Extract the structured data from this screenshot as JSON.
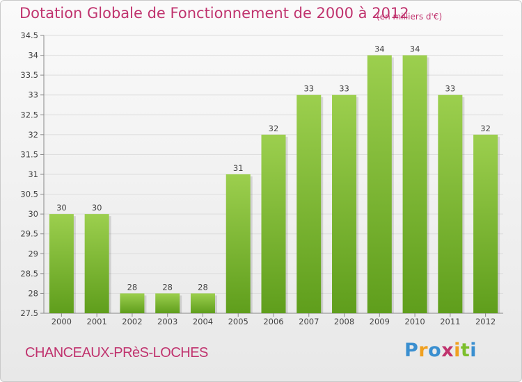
{
  "title": "Dotation Globale de Fonctionnement de 2000 à 2012",
  "unit_note": "(en milliers d'€)",
  "commune": "CHANCEAUX-PRèS-LOCHES",
  "logo_text": "Proxiti",
  "chart_data": {
    "type": "bar",
    "categories": [
      "2000",
      "2001",
      "2002",
      "2003",
      "2004",
      "2005",
      "2006",
      "2007",
      "2008",
      "2009",
      "2010",
      "2011",
      "2012"
    ],
    "values": [
      30,
      30,
      28,
      28,
      28,
      31,
      32,
      33,
      33,
      34,
      34,
      33,
      32
    ],
    "data_labels": [
      "30",
      "30",
      "28",
      "28",
      "28",
      "31",
      "32",
      "33",
      "33",
      "34",
      "34",
      "33",
      "32"
    ],
    "ylim": [
      27.5,
      34.5
    ],
    "yticks": [
      "27.5",
      "28",
      "28.5",
      "29",
      "29.5",
      "30",
      "30.5",
      "31",
      "31.5",
      "32",
      "32.5",
      "33",
      "33.5",
      "34",
      "34.5"
    ],
    "grid": true,
    "colors": {
      "bar_top": "#9ccf4e",
      "bar_bottom": "#5f9e1c",
      "grid": "#dcdcdc",
      "text": "#c0336e"
    }
  }
}
